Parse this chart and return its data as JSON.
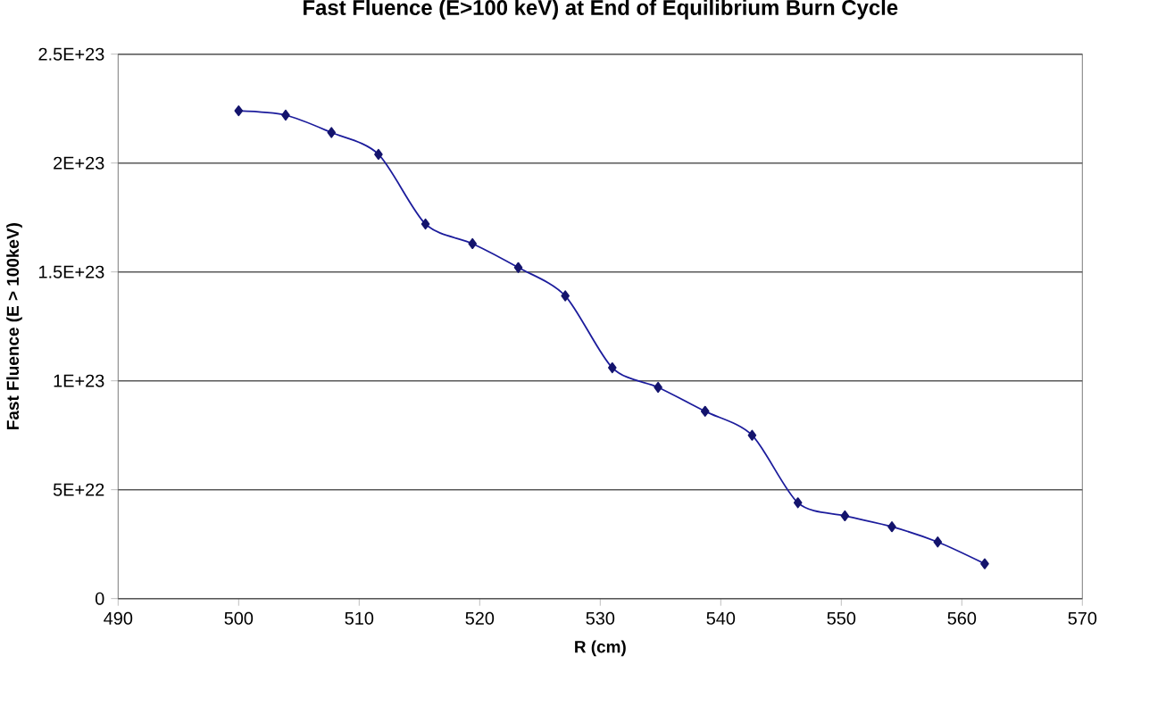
{
  "chart_data": {
    "type": "line",
    "title": "Fast Fluence (E>100 keV) at End of Equilibrium Burn Cycle",
    "xlabel": "R (cm)",
    "ylabel": "Fast Fluence (E > 100keV)",
    "x": [
      500,
      503.9,
      507.7,
      511.6,
      515.5,
      519.4,
      523.2,
      527.1,
      531,
      534.8,
      538.7,
      542.6,
      546.4,
      550.3,
      554.2,
      558,
      561.9
    ],
    "series": [
      {
        "color": "#1c1c9c",
        "values": [
          2.24e+23,
          2.22e+23,
          2.14e+23,
          2.04e+23,
          1.72e+23,
          1.63e+23,
          1.52e+23,
          1.39e+23,
          1.06e+23,
          9.7e+22,
          8.6e+22,
          7.5e+22,
          4.4e+22,
          3.8e+22,
          3.3e+22,
          2.6e+22,
          1.6e+22
        ]
      }
    ],
    "xlim": [
      490,
      570
    ],
    "xticks": [
      490,
      500,
      510,
      520,
      530,
      540,
      550,
      560,
      570
    ],
    "ylim": [
      0,
      2.5e+23
    ],
    "yticks": [
      0,
      {
        "value": 5e+22,
        "label": "5E+22"
      },
      {
        "value": 1e+23,
        "label": "1E+23"
      },
      {
        "value": 1.5e+23,
        "label": "1.5E+23"
      },
      {
        "value": 2e+23,
        "label": "2E+23"
      },
      {
        "value": 2.5e+23,
        "label": "2.5E+23"
      }
    ],
    "grid": "y",
    "legend": false,
    "marker": "diamond",
    "line_style": "solid"
  }
}
